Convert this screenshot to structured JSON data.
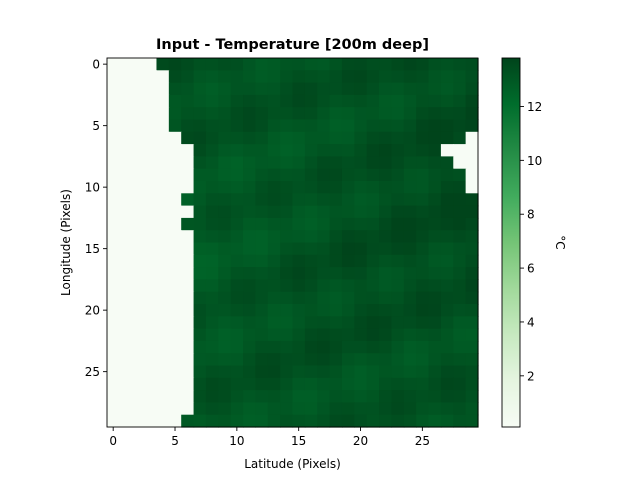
{
  "chart_data": {
    "type": "heatmap",
    "title": "Input - Temperature [200m deep]",
    "xlabel": "Latitude (Pixels)",
    "ylabel": "Longitude (Pixels)",
    "colorbar_label": "°C",
    "colormap": "Greens",
    "grid": false,
    "n_cols": 30,
    "n_rows": 30,
    "xlim": [
      -0.5,
      29.5
    ],
    "ylim": [
      29.5,
      -0.5
    ],
    "x_ticks": [
      0,
      5,
      10,
      15,
      20,
      25
    ],
    "y_ticks": [
      0,
      5,
      10,
      15,
      20,
      25
    ],
    "colorbar_range": [
      0.1,
      13.8
    ],
    "colorbar_ticks": [
      2,
      4,
      6,
      8,
      10,
      12
    ],
    "land_value": 0.1,
    "land_mask_first_ocean_col": [
      4,
      5,
      5,
      5,
      5,
      5,
      6,
      7,
      7,
      7,
      7,
      6,
      7,
      6,
      7,
      7,
      7,
      7,
      7,
      7,
      7,
      7,
      7,
      7,
      7,
      7,
      7,
      7,
      7,
      6
    ],
    "land_mask_right_notch": [
      {
        "row": 6,
        "from_col": 29
      },
      {
        "row": 7,
        "from_col": 27
      },
      {
        "row": 8,
        "from_col": 28
      },
      {
        "row": 9,
        "from_col": 29
      },
      {
        "row": 10,
        "from_col": 29
      }
    ],
    "ocean_value_range": [
      12.0,
      13.8
    ]
  },
  "colors": {
    "cmap_low": "#f7fcf5",
    "cmap_mid": "#74c476",
    "cmap_high": "#00441b"
  }
}
